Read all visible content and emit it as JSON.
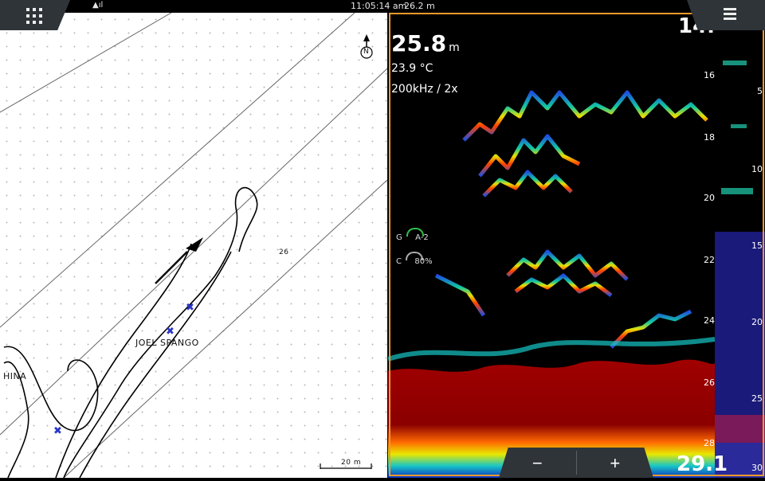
{
  "status": {
    "signal_icon": "signal-icon",
    "time": "11:05:14 am",
    "depth": "26.2 m"
  },
  "chart": {
    "north_label": "N",
    "contour_label": "26",
    "place_labels": [
      "JOEL SPANGO",
      "HINA"
    ],
    "scale_label": "20 m"
  },
  "sonar": {
    "depth": "25.8",
    "depth_unit": "m",
    "temperature": "23.9 °C",
    "frequency": "200kHz  / 2x",
    "range_top": "14.",
    "range_bottom": "29.1",
    "gain_label": "G",
    "gain_value": "A-2",
    "color_label": "C",
    "color_value": "80%",
    "depth_scale": [
      "16",
      "18",
      "20",
      "22",
      "24",
      "26",
      "28"
    ],
    "side_scale": [
      "5",
      "10",
      "15",
      "20",
      "25",
      "30"
    ]
  },
  "zoom": {
    "minus": "−",
    "plus": "+"
  },
  "colors": {
    "accent": "#f29a2a",
    "bottom": "#8b0000",
    "toolbar": "#2f3438"
  }
}
